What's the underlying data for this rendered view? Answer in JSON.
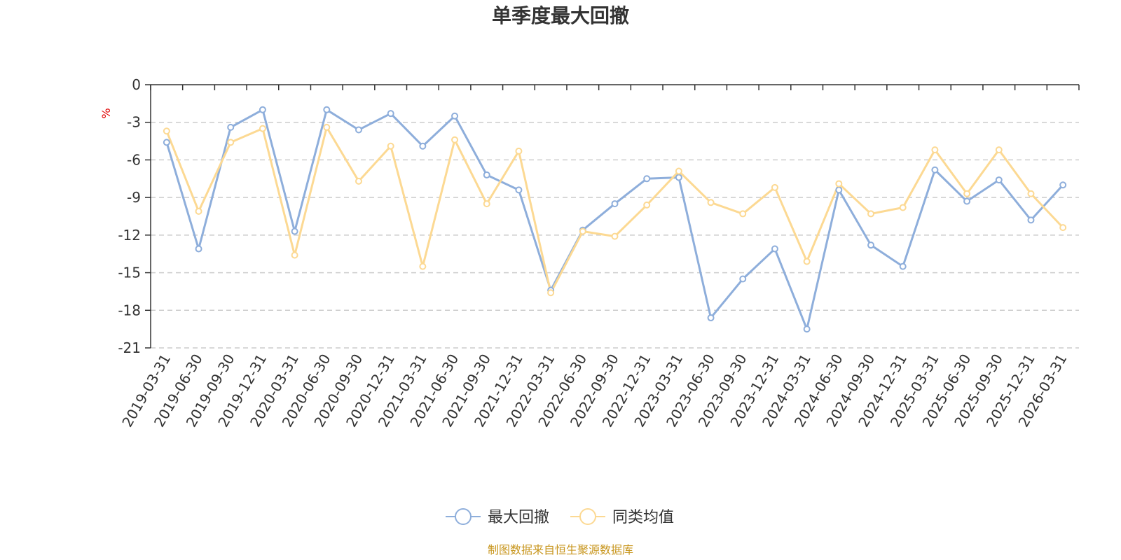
{
  "chart_data": {
    "type": "line",
    "title": "单季度最大回撤",
    "ylabel": "%",
    "ylim": [
      -21,
      0
    ],
    "yticks": [
      0,
      -3,
      -6,
      -9,
      -12,
      -15,
      -18,
      -21
    ],
    "grid": true,
    "legend_position": "bottom",
    "categories": [
      "2019-03-31",
      "2019-06-30",
      "2019-09-30",
      "2019-12-31",
      "2020-03-31",
      "2020-06-30",
      "2020-09-30",
      "2020-12-31",
      "2021-03-31",
      "2021-06-30",
      "2021-09-30",
      "2021-12-31",
      "2022-03-31",
      "2022-06-30",
      "2022-09-30",
      "2022-12-31",
      "2023-03-31",
      "2023-06-30",
      "2023-09-30",
      "2023-12-31",
      "2024-03-31",
      "2024-06-30",
      "2024-09-30",
      "2024-12-31",
      "2025-03-31",
      "2025-06-30",
      "2025-09-30",
      "2025-12-31",
      "2026-03-31"
    ],
    "series": [
      {
        "name": "最大回撤",
        "color": "#8eaedb",
        "values": [
          -4.6,
          -13.1,
          -3.4,
          -2.0,
          -11.7,
          -2.0,
          -3.6,
          -2.3,
          -4.9,
          -2.5,
          -7.2,
          -8.4,
          -16.4,
          -11.6,
          -9.5,
          -7.5,
          -7.4,
          -18.6,
          -15.5,
          -13.1,
          -19.5,
          -8.4,
          -12.8,
          -14.5,
          -6.8,
          -9.3,
          -7.6,
          -10.8,
          -8.0
        ]
      },
      {
        "name": "同类均值",
        "color": "#fcd993",
        "values": [
          -3.7,
          -10.1,
          -4.6,
          -3.5,
          -13.6,
          -3.4,
          -7.7,
          -4.9,
          -14.5,
          -4.4,
          -9.5,
          -5.3,
          -16.6,
          -11.7,
          -12.1,
          -9.6,
          -6.9,
          -9.4,
          -10.3,
          -8.2,
          -14.1,
          -7.9,
          -10.3,
          -9.8,
          -5.2,
          -8.7,
          -5.2,
          -8.7,
          -11.4
        ]
      }
    ]
  },
  "source_note": "制图数据来自恒生聚源数据库"
}
